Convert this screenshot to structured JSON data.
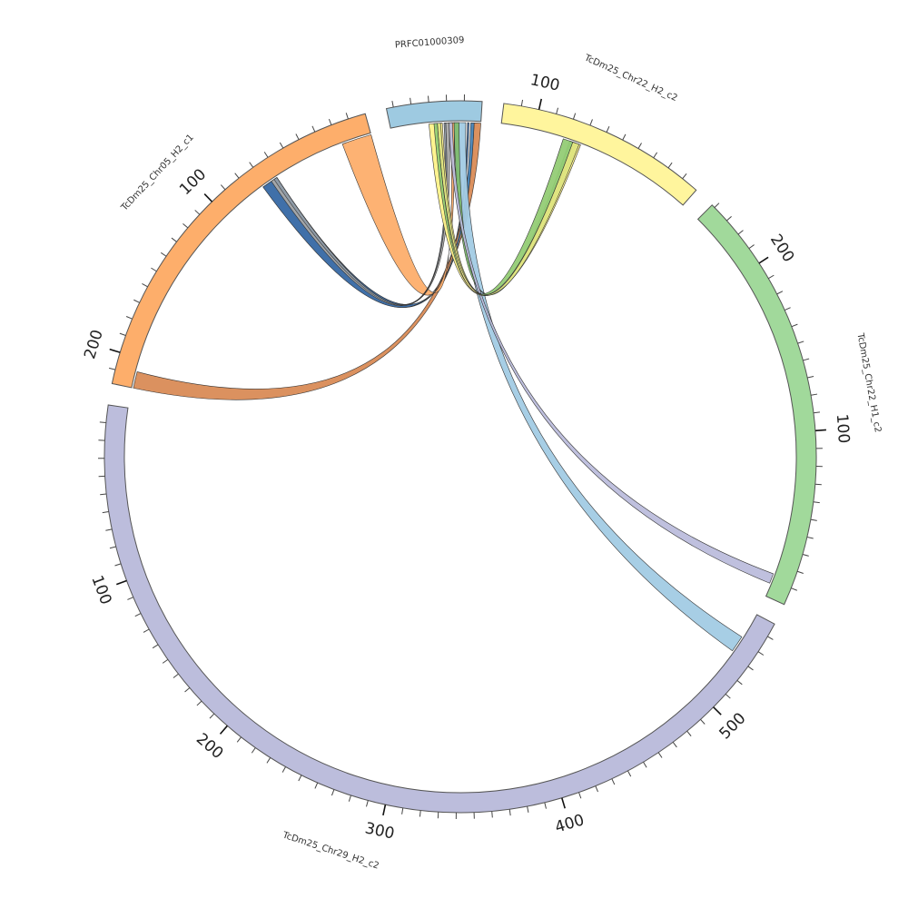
{
  "segments": [
    {
      "id": "prfc",
      "label": "PRFC01000309",
      "length": 54,
      "color": "#9ECAE1",
      "tick_labels": []
    },
    {
      "id": "chr22h2",
      "label": "TcDm25_Chr22_H2_c2",
      "length": 120,
      "color": "#FFF59D",
      "tick_labels": [
        "100"
      ]
    },
    {
      "id": "chr22h1",
      "label": "TcDm25_Chr22_H1_c2",
      "length": 242,
      "color": "#A1D99B",
      "tick_labels": [
        "100",
        "200"
      ]
    },
    {
      "id": "chr29",
      "label": "TcDm25_Chr29_H2_c2",
      "length": 558,
      "color": "#BCBDDC",
      "tick_labels": [
        "100",
        "200",
        "300",
        "400",
        "500"
      ]
    },
    {
      "id": "chr05",
      "label": "TcDm25_Chr05_H2_c1",
      "length": 218,
      "color": "#FDAE6B",
      "tick_labels": [
        "100",
        "200"
      ]
    }
  ],
  "links": [
    {
      "from": "prfc",
      "from_range": [
        0,
        4
      ],
      "to": "chr05",
      "to_range": [
        208,
        218
      ],
      "color": "#D98B56"
    },
    {
      "from": "prfc",
      "from_range": [
        4,
        6
      ],
      "to": "chr05",
      "to_range": [
        62,
        72
      ],
      "color": "#4682B4"
    },
    {
      "from": "prfc",
      "from_range": [
        7,
        8
      ],
      "to": "chr05",
      "to_range": [
        62,
        72
      ],
      "color": "#3F6FA8"
    },
    {
      "from": "prfc",
      "from_range": [
        9,
        16
      ],
      "to": "chr29",
      "to_range": [
        532,
        542
      ],
      "color": "#A2CBE4"
    },
    {
      "from": "prfc",
      "from_range": [
        13,
        16
      ],
      "to": "chr22h2",
      "to_range": [
        74,
        78
      ],
      "color": "#7DBB6E"
    },
    {
      "from": "prfc",
      "from_range": [
        16,
        18
      ],
      "to": "chr05",
      "to_range": [
        0,
        18
      ],
      "color": "#FDAE6B"
    },
    {
      "from": "prfc",
      "from_range": [
        17,
        19
      ],
      "to": "chr22h1",
      "to_range": [
        8,
        14
      ],
      "color": "#BCBDDC"
    },
    {
      "from": "prfc",
      "from_range": [
        19,
        21
      ],
      "to": "chr05",
      "to_range": [
        62,
        66
      ],
      "color": "#A9A9A9"
    },
    {
      "from": "prfc",
      "from_range": [
        21,
        22
      ],
      "to": "chr05",
      "to_range": [
        62,
        64
      ],
      "color": "#8E9AA6"
    },
    {
      "from": "prfc",
      "from_range": [
        23,
        31
      ],
      "to": "chr22h2",
      "to_range": [
        71,
        76
      ],
      "color": "#FFF38A"
    },
    {
      "from": "prfc",
      "from_range": [
        24,
        26
      ],
      "to": "chr22h2",
      "to_range": [
        72,
        76
      ],
      "color": "#DDE37F"
    },
    {
      "from": "prfc",
      "from_range": [
        26,
        28
      ],
      "to": "chr22h2",
      "to_range": [
        76,
        82
      ],
      "color": "#93CC75"
    }
  ]
}
